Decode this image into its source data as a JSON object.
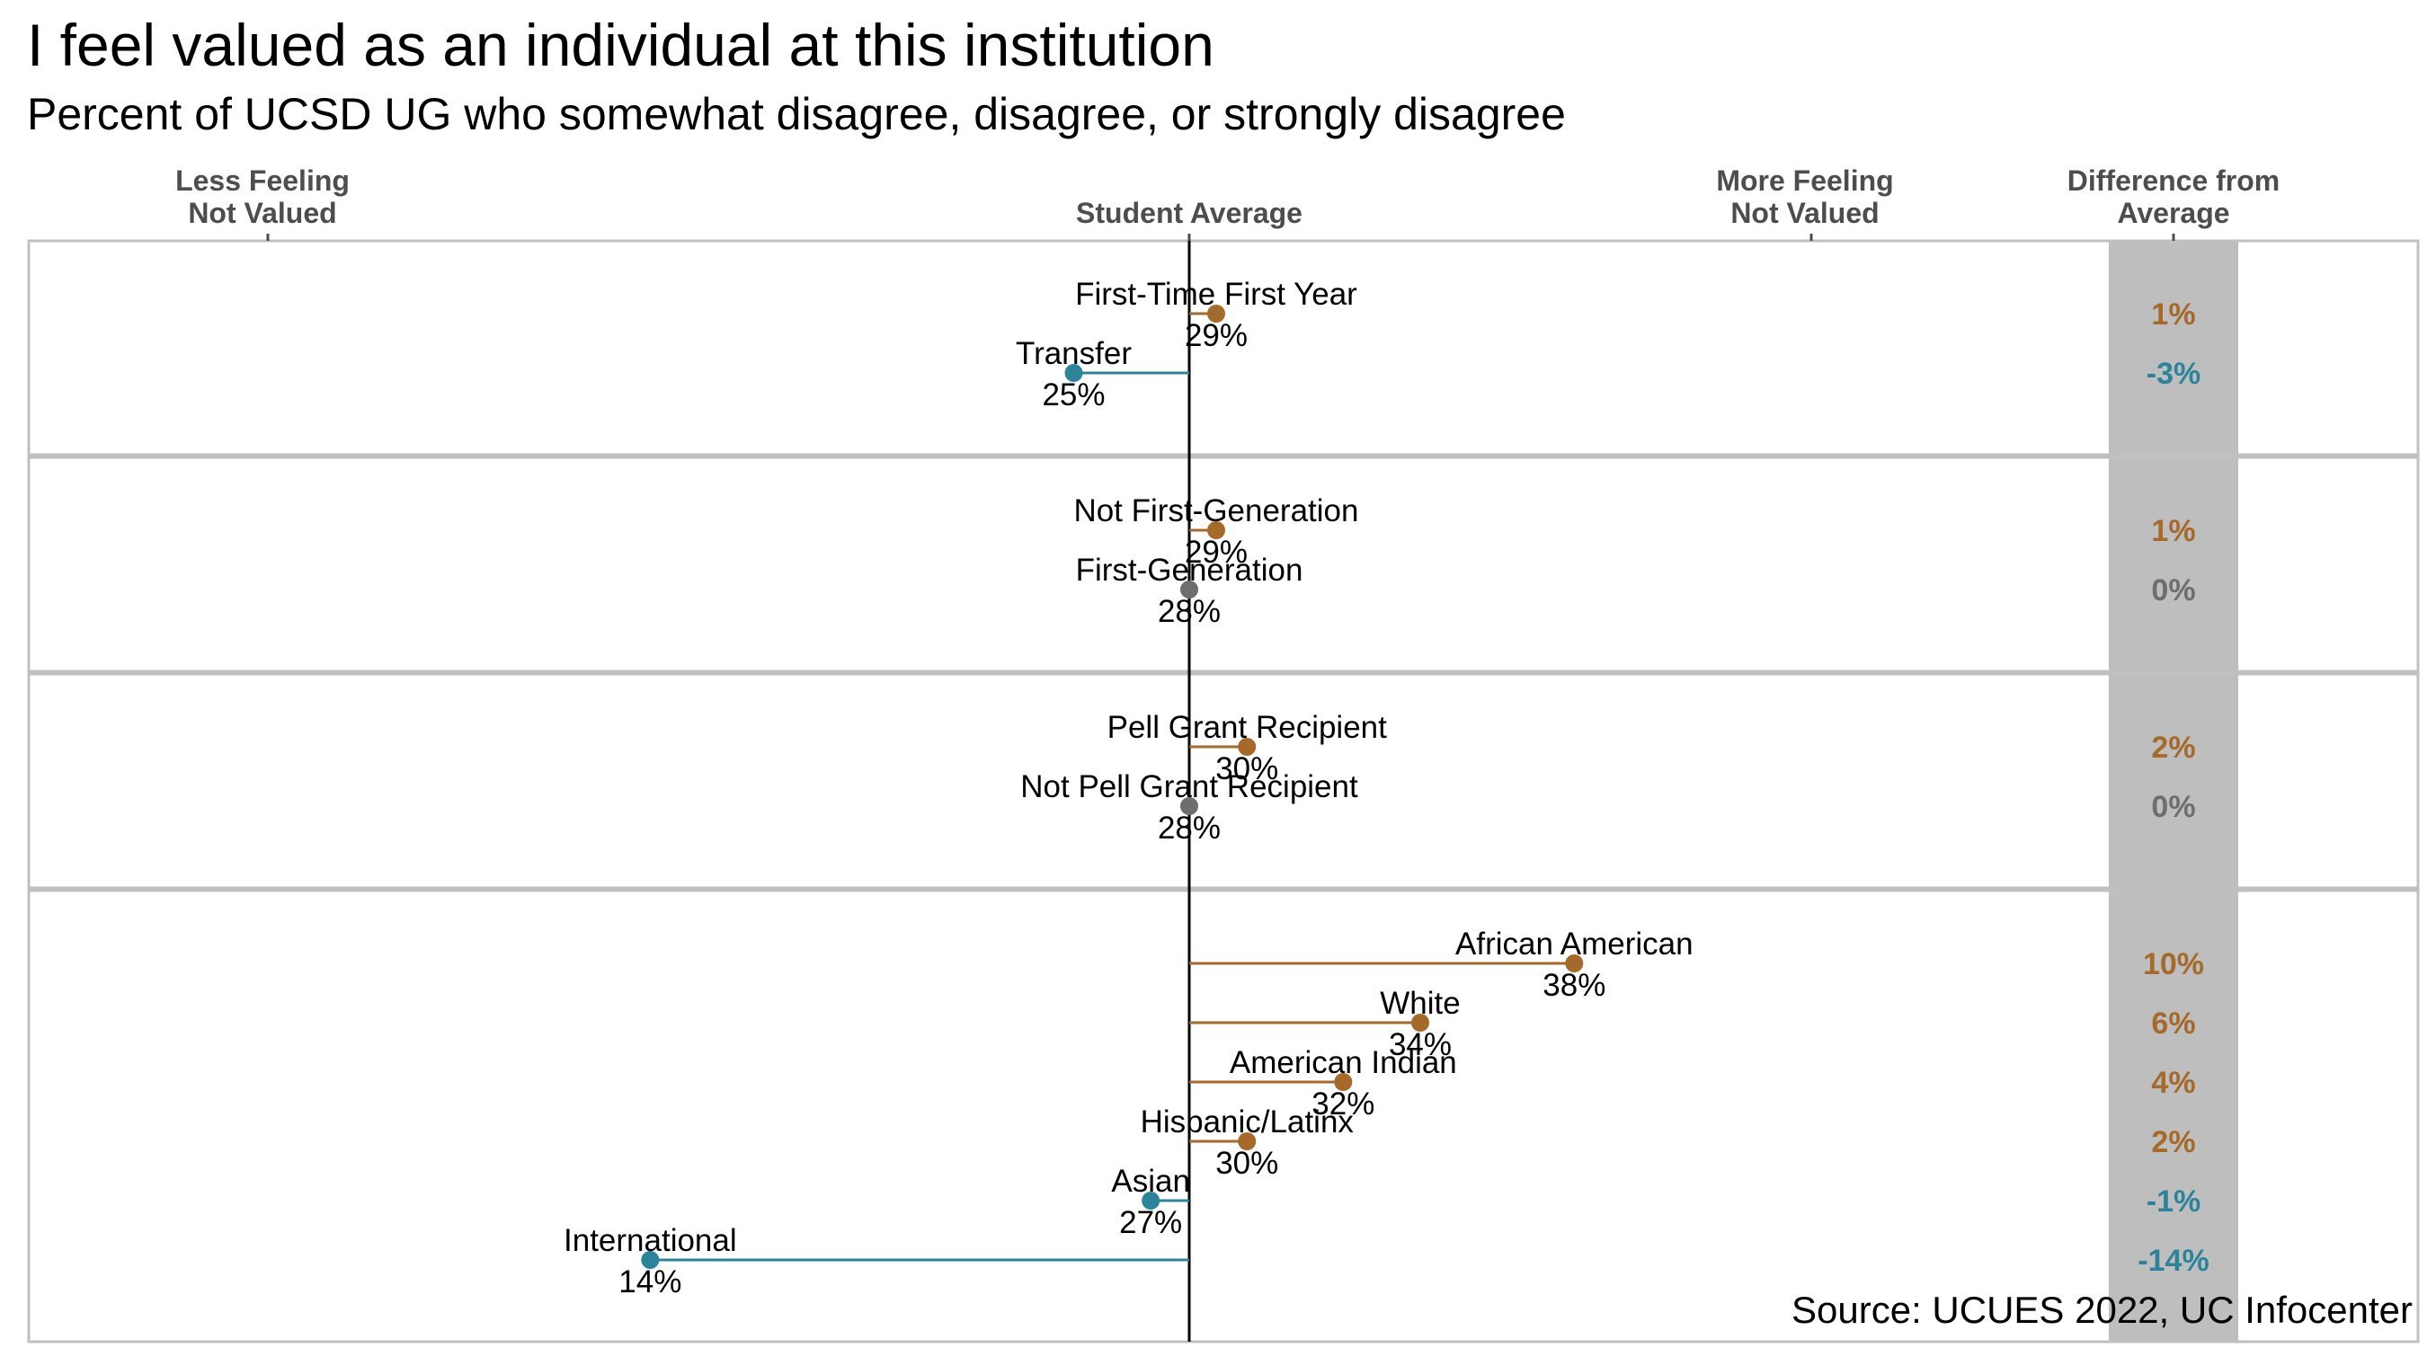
{
  "header": {
    "title": "I feel valued as an individual at this institution",
    "subtitle": "Percent of UCSD UG who somewhat disagree, disagree, or strongly disagree"
  },
  "footer": {
    "source": "Source: UCUES 2022, UC Infocenter"
  },
  "colors": {
    "above": "#a5692a",
    "below": "#2b8499",
    "equal": "#6e6e6e",
    "diff_band": "#bebebe",
    "panel_border": "#c0c0c0"
  },
  "chart_data": {
    "type": "dot-difference",
    "title": "I feel valued as an individual at this institution",
    "subtitle": "Percent of UCSD UG who somewhat disagree, disagree, or strongly disagree",
    "reference": {
      "label": "Student Average",
      "value": 28
    },
    "axis_labels": {
      "less": [
        "Less Feeling",
        "Not Valued"
      ],
      "more": [
        "More Feeling",
        "Not Valued"
      ],
      "diff": [
        "Difference from",
        "Average"
      ]
    },
    "xlim": [
      14,
      38
    ],
    "panels": [
      {
        "rows": [
          {
            "name": "First-Time First Year",
            "value_label": "29%",
            "value": 28.7,
            "diff": "1%",
            "sign": "above"
          },
          {
            "name": "Transfer",
            "value_label": "25%",
            "value": 25,
            "diff": "-3%",
            "sign": "below"
          }
        ]
      },
      {
        "rows": [
          {
            "name": "Not First-Generation",
            "value_label": "29%",
            "value": 28.7,
            "diff": "1%",
            "sign": "above"
          },
          {
            "name": "First-Generation",
            "value_label": "28%",
            "value": 28,
            "diff": "0%",
            "sign": "equal"
          }
        ]
      },
      {
        "rows": [
          {
            "name": "Pell Grant Recipient",
            "value_label": "30%",
            "value": 29.5,
            "diff": "2%",
            "sign": "above"
          },
          {
            "name": "Not Pell Grant Recipient",
            "value_label": "28%",
            "value": 28,
            "diff": "0%",
            "sign": "equal"
          }
        ]
      },
      {
        "rows": [
          {
            "name": "African American",
            "value_label": "38%",
            "value": 38,
            "diff": "10%",
            "sign": "above"
          },
          {
            "name": "White",
            "value_label": "34%",
            "value": 34,
            "diff": "6%",
            "sign": "above"
          },
          {
            "name": "American Indian",
            "value_label": "32%",
            "value": 32,
            "diff": "4%",
            "sign": "above"
          },
          {
            "name": "Hispanic/Latinx",
            "value_label": "30%",
            "value": 29.5,
            "diff": "2%",
            "sign": "above"
          },
          {
            "name": "Asian",
            "value_label": "27%",
            "value": 27,
            "diff": "-1%",
            "sign": "below"
          },
          {
            "name": "International",
            "value_label": "14%",
            "value": 14,
            "diff": "-14%",
            "sign": "below"
          }
        ]
      }
    ]
  }
}
